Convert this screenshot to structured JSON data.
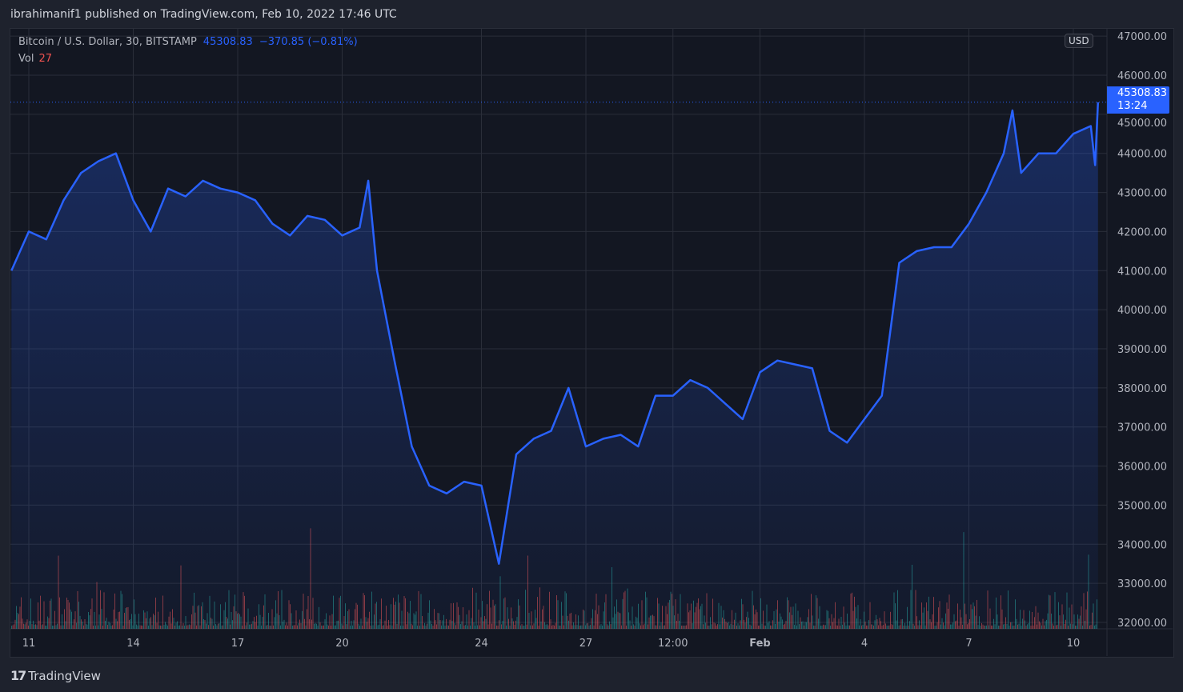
{
  "header": {
    "published": "ibrahimanif1 published on TradingView.com, Feb 10, 2022 17:46 UTC"
  },
  "legend": {
    "symbol": "Bitcoin / U.S. Dollar, 30, BITSTAMP",
    "last": "45308.83",
    "change": "−370.85 (−0.81%)",
    "vol_label": "Vol",
    "vol_value": "27"
  },
  "axis": {
    "currency": "USD",
    "price_tag": "45308.83",
    "countdown": "13:24"
  },
  "footer": {
    "brand": "TradingView"
  },
  "colors": {
    "line": "#2962ff",
    "up_volume": "#26a69a",
    "down_volume": "#ef5350",
    "background": "#131722"
  },
  "chart_data": {
    "type": "area",
    "title": "Bitcoin / U.S. Dollar, 30, BITSTAMP",
    "ylim": [
      32000,
      47000
    ],
    "y_ticks": [
      "47000.00",
      "46000.00",
      "45000.00",
      "44000.00",
      "43000.00",
      "42000.00",
      "41000.00",
      "40000.00",
      "39000.00",
      "38000.00",
      "37000.00",
      "36000.00",
      "35000.00",
      "34000.00",
      "33000.00",
      "32000.00"
    ],
    "x_ticks": [
      {
        "label": "11",
        "t": "2022-01-11T00:00"
      },
      {
        "label": "14",
        "t": "2022-01-14T00:00"
      },
      {
        "label": "17",
        "t": "2022-01-17T00:00"
      },
      {
        "label": "20",
        "t": "2022-01-20T00:00"
      },
      {
        "label": "24",
        "t": "2022-01-24T00:00"
      },
      {
        "label": "27",
        "t": "2022-01-27T00:00"
      },
      {
        "label": "12:00",
        "t": "2022-01-29T12:00"
      },
      {
        "label": "Feb",
        "t": "2022-02-01T00:00"
      },
      {
        "label": "4",
        "t": "2022-02-04T00:00"
      },
      {
        "label": "7",
        "t": "2022-02-07T00:00"
      },
      {
        "label": "10",
        "t": "2022-02-10T00:00"
      }
    ],
    "grid": true,
    "series": [
      {
        "values": [
          [
            "2022-01-10T12:00",
            41000
          ],
          [
            "2022-01-11T00:00",
            42000
          ],
          [
            "2022-01-11T12:00",
            41800
          ],
          [
            "2022-01-12T00:00",
            42800
          ],
          [
            "2022-01-12T12:00",
            43500
          ],
          [
            "2022-01-13T00:00",
            43800
          ],
          [
            "2022-01-13T12:00",
            44000
          ],
          [
            "2022-01-14T00:00",
            42800
          ],
          [
            "2022-01-14T12:00",
            42000
          ],
          [
            "2022-01-15T00:00",
            43100
          ],
          [
            "2022-01-15T12:00",
            42900
          ],
          [
            "2022-01-16T00:00",
            43300
          ],
          [
            "2022-01-16T12:00",
            43100
          ],
          [
            "2022-01-17T00:00",
            43000
          ],
          [
            "2022-01-17T12:00",
            42800
          ],
          [
            "2022-01-18T00:00",
            42200
          ],
          [
            "2022-01-18T12:00",
            41900
          ],
          [
            "2022-01-19T00:00",
            42400
          ],
          [
            "2022-01-19T12:00",
            42300
          ],
          [
            "2022-01-20T00:00",
            41900
          ],
          [
            "2022-01-20T12:00",
            42100
          ],
          [
            "2022-01-20T18:00",
            43300
          ],
          [
            "2022-01-21T00:00",
            41000
          ],
          [
            "2022-01-21T12:00",
            38700
          ],
          [
            "2022-01-22T00:00",
            36500
          ],
          [
            "2022-01-22T12:00",
            35500
          ],
          [
            "2022-01-23T00:00",
            35300
          ],
          [
            "2022-01-23T12:00",
            35600
          ],
          [
            "2022-01-24T00:00",
            35500
          ],
          [
            "2022-01-24T12:00",
            33500
          ],
          [
            "2022-01-25T00:00",
            36300
          ],
          [
            "2022-01-25T12:00",
            36700
          ],
          [
            "2022-01-26T00:00",
            36900
          ],
          [
            "2022-01-26T12:00",
            38000
          ],
          [
            "2022-01-27T00:00",
            36500
          ],
          [
            "2022-01-27T12:00",
            36700
          ],
          [
            "2022-01-28T00:00",
            36800
          ],
          [
            "2022-01-28T12:00",
            36500
          ],
          [
            "2022-01-29T00:00",
            37800
          ],
          [
            "2022-01-29T12:00",
            37800
          ],
          [
            "2022-01-30T00:00",
            38200
          ],
          [
            "2022-01-30T12:00",
            38000
          ],
          [
            "2022-01-31T00:00",
            37600
          ],
          [
            "2022-01-31T12:00",
            37200
          ],
          [
            "2022-02-01T00:00",
            38400
          ],
          [
            "2022-02-01T12:00",
            38700
          ],
          [
            "2022-02-02T00:00",
            38600
          ],
          [
            "2022-02-02T12:00",
            38500
          ],
          [
            "2022-02-03T00:00",
            36900
          ],
          [
            "2022-02-03T12:00",
            36600
          ],
          [
            "2022-02-04T00:00",
            37200
          ],
          [
            "2022-02-04T12:00",
            37800
          ],
          [
            "2022-02-05T00:00",
            41200
          ],
          [
            "2022-02-05T12:00",
            41500
          ],
          [
            "2022-02-06T00:00",
            41600
          ],
          [
            "2022-02-06T12:00",
            41600
          ],
          [
            "2022-02-07T00:00",
            42200
          ],
          [
            "2022-02-07T12:00",
            43000
          ],
          [
            "2022-02-08T00:00",
            44000
          ],
          [
            "2022-02-08T06:00",
            45100
          ],
          [
            "2022-02-08T12:00",
            43500
          ],
          [
            "2022-02-09T00:00",
            44000
          ],
          [
            "2022-02-09T12:00",
            44000
          ],
          [
            "2022-02-10T00:00",
            44500
          ],
          [
            "2022-02-10T12:00",
            44700
          ],
          [
            "2022-02-10T15:00",
            43700
          ],
          [
            "2022-02-10T17:00",
            45308.83
          ]
        ]
      }
    ]
  }
}
